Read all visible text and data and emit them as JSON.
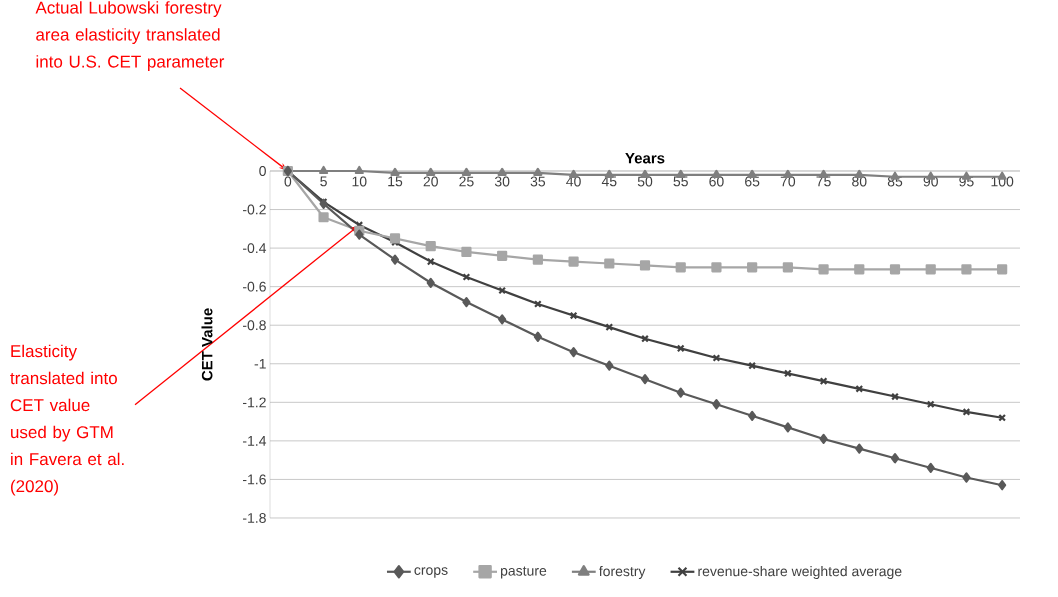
{
  "chart_data": {
    "type": "line",
    "xlabel": "Years",
    "ylabel": "CET Value",
    "categories": [
      "0",
      "5",
      "10",
      "15",
      "20",
      "25",
      "30",
      "35",
      "40",
      "45",
      "50",
      "55",
      "60",
      "65",
      "70",
      "75",
      "80",
      "85",
      "90",
      "95",
      "100"
    ],
    "series": [
      {
        "name": "crops",
        "color": "#595959",
        "marker": "diamond",
        "values": [
          0,
          -0.17,
          -0.33,
          -0.46,
          -0.58,
          -0.68,
          -0.77,
          -0.86,
          -0.94,
          -1.01,
          -1.08,
          -1.15,
          -1.21,
          -1.27,
          -1.33,
          -1.39,
          -1.44,
          -1.49,
          -1.54,
          -1.59,
          -1.63
        ]
      },
      {
        "name": "pasture",
        "color": "#a6a6a6",
        "marker": "square",
        "values": [
          0,
          -0.24,
          -0.31,
          -0.35,
          -0.39,
          -0.42,
          -0.44,
          -0.46,
          -0.47,
          -0.48,
          -0.49,
          -0.5,
          -0.5,
          -0.5,
          -0.5,
          -0.51,
          -0.51,
          -0.51,
          -0.51,
          -0.51,
          -0.51
        ]
      },
      {
        "name": "forestry",
        "color": "#7f7f7f",
        "marker": "triangle",
        "values": [
          0,
          0,
          0,
          -0.01,
          -0.01,
          -0.01,
          -0.01,
          -0.01,
          -0.02,
          -0.02,
          -0.02,
          -0.02,
          -0.02,
          -0.02,
          -0.02,
          -0.02,
          -0.02,
          -0.03,
          -0.03,
          -0.03,
          -0.03
        ]
      },
      {
        "name": "revenue-share weighted average",
        "color": "#404040",
        "marker": "cross",
        "values": [
          0,
          -0.16,
          -0.28,
          -0.37,
          -0.47,
          -0.55,
          -0.62,
          -0.69,
          -0.75,
          -0.81,
          -0.87,
          -0.92,
          -0.97,
          -1.01,
          -1.05,
          -1.09,
          -1.13,
          -1.17,
          -1.21,
          -1.25,
          -1.28
        ]
      }
    ],
    "ylim": [
      -1.8,
      0
    ],
    "yticks": [
      -1.8,
      -1.6,
      -1.4,
      -1.2,
      -1,
      -0.8,
      -0.6,
      -0.4,
      -0.2,
      0
    ],
    "grid": "y",
    "legend": "bottom",
    "line_style": "solid",
    "annotations": [
      {
        "text": "Actual Lubowski forestry area elasticity translated into U.S. CET parameter",
        "x": "0",
        "y": 0
      },
      {
        "text": "Elasticity translated into CET value used by GTM in Favera et al. (2020)",
        "x": "10",
        "y": -0.28
      }
    ]
  }
}
